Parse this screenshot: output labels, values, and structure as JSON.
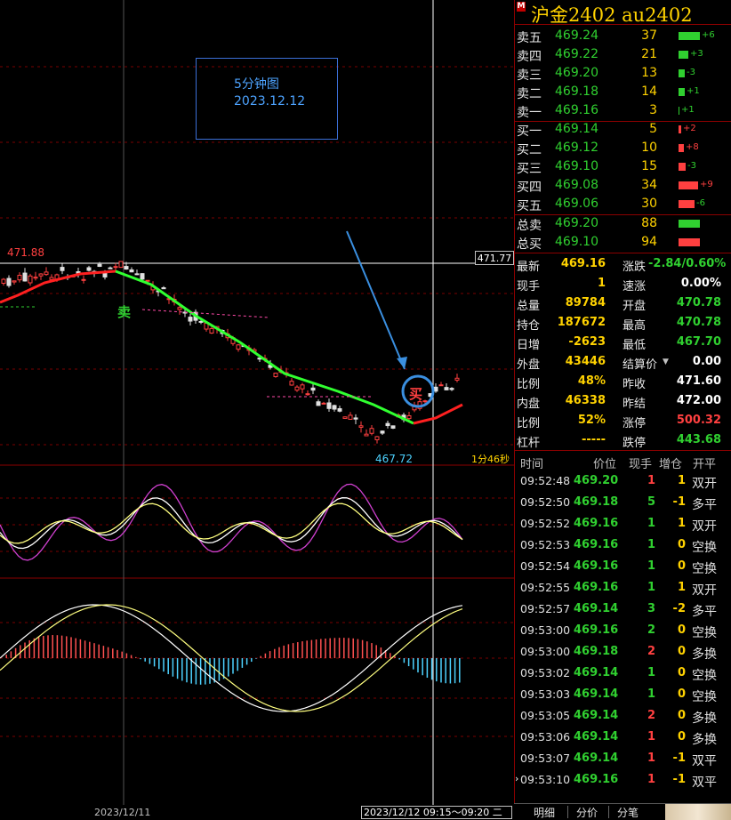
{
  "header": {
    "badge": "M",
    "title": "沪金2402 au2402"
  },
  "colors": {
    "up": "#ff4040",
    "down": "#30d030",
    "accent": "#ffd200",
    "frame": "#8b0000"
  },
  "ask": [
    {
      "label": "卖五",
      "price": "469.24",
      "vol": "37",
      "chg": "+6",
      "bar": 1.0
    },
    {
      "label": "卖四",
      "price": "469.22",
      "vol": "21",
      "chg": "+3",
      "bar": 0.45
    },
    {
      "label": "卖三",
      "price": "469.20",
      "vol": "13",
      "chg": "-3",
      "bar": 0.3
    },
    {
      "label": "卖二",
      "price": "469.18",
      "vol": "14",
      "chg": "+1",
      "bar": 0.3
    },
    {
      "label": "卖一",
      "price": "469.16",
      "vol": "3",
      "chg": "+1",
      "bar": 0.06
    }
  ],
  "bid": [
    {
      "label": "买一",
      "price": "469.14",
      "vol": "5",
      "chg": "+2",
      "bar": 0.12
    },
    {
      "label": "买二",
      "price": "469.12",
      "vol": "10",
      "chg": "+8",
      "bar": 0.25
    },
    {
      "label": "买三",
      "price": "469.10",
      "vol": "15",
      "chg": "-3",
      "bar": 0.35
    },
    {
      "label": "买四",
      "price": "469.08",
      "vol": "34",
      "chg": "+9",
      "bar": 0.9
    },
    {
      "label": "买五",
      "price": "469.06",
      "vol": "30",
      "chg": "-6",
      "bar": 0.75
    }
  ],
  "totals": [
    {
      "label": "总卖",
      "price": "469.20",
      "vol": "88"
    },
    {
      "label": "总买",
      "price": "469.10",
      "vol": "94"
    }
  ],
  "stats": [
    {
      "k1": "最新",
      "v1": "469.16",
      "c1": "#ffd200",
      "k2": "涨跌",
      "v2": "-2.84/0.60%",
      "c2": "#30d030"
    },
    {
      "k1": "现手",
      "v1": "1",
      "c1": "#ffd200",
      "k2": "速涨",
      "v2": "0.00%",
      "c2": "#ffffff"
    },
    {
      "k1": "总量",
      "v1": "89784",
      "c1": "#ffd200",
      "k2": "开盘",
      "v2": "470.78",
      "c2": "#30d030"
    },
    {
      "k1": "持仓",
      "v1": "187672",
      "c1": "#ffd200",
      "k2": "最高",
      "v2": "470.78",
      "c2": "#30d030"
    },
    {
      "k1": "日增",
      "v1": "-2623",
      "c1": "#ffd200",
      "k2": "最低",
      "v2": "467.70",
      "c2": "#30d030"
    },
    {
      "k1": "外盘",
      "v1": "43446",
      "c1": "#ffd200",
      "k2": "结算价",
      "v2": "0.00",
      "c2": "#ffffff"
    },
    {
      "k1": "比例",
      "v1": "48%",
      "c1": "#ffd200",
      "k2": "昨收",
      "v2": "471.60",
      "c2": "#ffffff"
    },
    {
      "k1": "内盘",
      "v1": "46338",
      "c1": "#ffd200",
      "k2": "昨结",
      "v2": "472.00",
      "c2": "#ffffff"
    },
    {
      "k1": "比例",
      "v1": "52%",
      "c1": "#ffd200",
      "k2": "涨停",
      "v2": "500.32",
      "c2": "#ff4040"
    },
    {
      "k1": "杠杆",
      "v1": "-----",
      "c1": "#ffd200",
      "k2": "跌停",
      "v2": "443.68",
      "c2": "#30d030"
    }
  ],
  "ticks_header": {
    "time": "时间",
    "price": "价位",
    "vol": "现手",
    "oi": "增仓",
    "type": "开平"
  },
  "ticks": [
    {
      "time": "09:52:48",
      "price": "469.20",
      "vol": "1",
      "oi": "1",
      "type": "双开",
      "vc": "#ff4040"
    },
    {
      "time": "09:52:50",
      "price": "469.18",
      "vol": "5",
      "oi": "-1",
      "type": "多平",
      "vc": "#30d030"
    },
    {
      "time": "09:52:52",
      "price": "469.16",
      "vol": "1",
      "oi": "1",
      "type": "双开",
      "vc": "#30d030"
    },
    {
      "time": "09:52:53",
      "price": "469.16",
      "vol": "1",
      "oi": "0",
      "type": "空换",
      "vc": "#30d030"
    },
    {
      "time": "09:52:54",
      "price": "469.16",
      "vol": "1",
      "oi": "0",
      "type": "空换",
      "vc": "#30d030"
    },
    {
      "time": "09:52:55",
      "price": "469.16",
      "vol": "1",
      "oi": "1",
      "type": "双开",
      "vc": "#30d030"
    },
    {
      "time": "09:52:57",
      "price": "469.14",
      "vol": "3",
      "oi": "-2",
      "type": "多平",
      "vc": "#30d030"
    },
    {
      "time": "09:53:00",
      "price": "469.16",
      "vol": "2",
      "oi": "0",
      "type": "空换",
      "vc": "#30d030"
    },
    {
      "time": "09:53:00",
      "price": "469.18",
      "vol": "2",
      "oi": "0",
      "type": "多换",
      "vc": "#ff4040"
    },
    {
      "time": "09:53:02",
      "price": "469.14",
      "vol": "1",
      "oi": "0",
      "type": "空换",
      "vc": "#30d030"
    },
    {
      "time": "09:53:03",
      "price": "469.14",
      "vol": "1",
      "oi": "0",
      "type": "空换",
      "vc": "#30d030"
    },
    {
      "time": "09:53:05",
      "price": "469.14",
      "vol": "2",
      "oi": "0",
      "type": "多换",
      "vc": "#ff4040"
    },
    {
      "time": "09:53:06",
      "price": "469.14",
      "vol": "1",
      "oi": "0",
      "type": "多换",
      "vc": "#ff4040"
    },
    {
      "time": "09:53:07",
      "price": "469.14",
      "vol": "1",
      "oi": "-1",
      "type": "双平",
      "vc": "#ff4040"
    },
    {
      "time": "09:53:10",
      "price": "469.16",
      "vol": "1",
      "oi": "-1",
      "type": "双平",
      "vc": "#ff4040"
    }
  ],
  "tabs": [
    "明细",
    "分价",
    "分笔"
  ],
  "chart": {
    "note_title": "5分钟图",
    "note_date": "2023.12.12",
    "high_label": "471.88",
    "low_label": "467.72",
    "sell_mark": "卖",
    "buy_mark": "买",
    "cursor_price": "471.77",
    "countdown": "1分46秒",
    "date_left": "2023/12/11",
    "date_cursor": "2023/12/12 09:15～09:20 二"
  }
}
